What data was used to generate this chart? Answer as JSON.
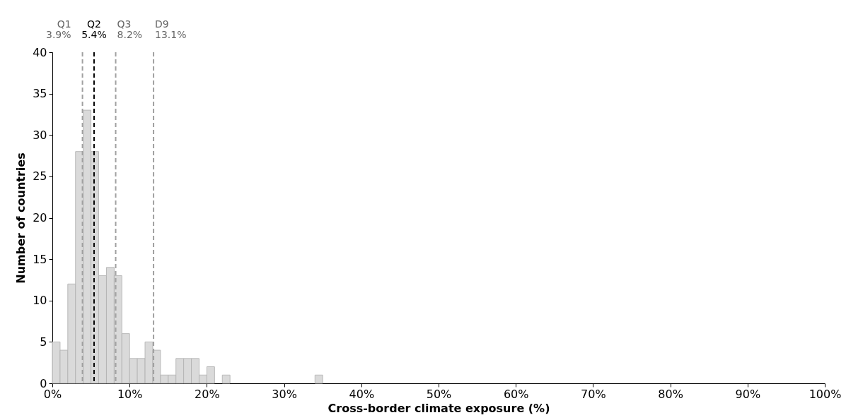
{
  "chart_data": {
    "type": "histogram",
    "xlabel": "Cross-border climate exposure (%)",
    "ylabel": "Number of countries",
    "bins": [
      0,
      1,
      2,
      3,
      4,
      5,
      6,
      7,
      8,
      9,
      10,
      11,
      12,
      13,
      14,
      15,
      16,
      17,
      18,
      19,
      20,
      21,
      22,
      23,
      24,
      25,
      26,
      27,
      28,
      29,
      30,
      31,
      32,
      33,
      34,
      35
    ],
    "values": [
      5,
      4,
      12,
      28,
      33,
      28,
      13,
      14,
      13,
      6,
      3,
      3,
      5,
      4,
      1,
      1,
      3,
      3,
      3,
      1,
      2,
      0,
      1,
      0,
      0,
      0,
      0,
      0,
      0,
      0,
      0,
      0,
      0,
      0,
      1
    ],
    "color": "#d9d9d9",
    "xlim": [
      0,
      100
    ],
    "xticks": [
      {
        "value": 0,
        "label": "0%"
      },
      {
        "value": 10,
        "label": "10%"
      },
      {
        "value": 20,
        "label": "20%"
      },
      {
        "value": 30,
        "label": "30%"
      },
      {
        "value": 40,
        "label": "40%"
      },
      {
        "value": 50,
        "label": "50%"
      },
      {
        "value": 60,
        "label": "60%"
      },
      {
        "value": 70,
        "label": "70%"
      },
      {
        "value": 80,
        "label": "80%"
      },
      {
        "value": 90,
        "label": "90%"
      },
      {
        "value": 100,
        "label": "100%"
      }
    ],
    "ylim": [
      0,
      40
    ],
    "yticks": [
      0,
      5,
      10,
      15,
      20,
      25,
      30,
      35,
      40
    ],
    "ref_lines": [
      {
        "axis": "x",
        "value": 3.9,
        "label": "Q1\n3.9%",
        "color": "#a0a0a0",
        "line_style": "dashed"
      },
      {
        "axis": "x",
        "value": 5.4,
        "label": "Q2\n5.4%",
        "color": "#000000",
        "line_style": "dashed"
      },
      {
        "axis": "x",
        "value": 8.2,
        "label": "Q3\n8.2%",
        "color": "#a0a0a0",
        "line_style": "dashed"
      },
      {
        "axis": "x",
        "value": 13.1,
        "label": "D9\n13.1%",
        "color": "#a0a0a0",
        "line_style": "dashed"
      }
    ],
    "grid": false
  }
}
